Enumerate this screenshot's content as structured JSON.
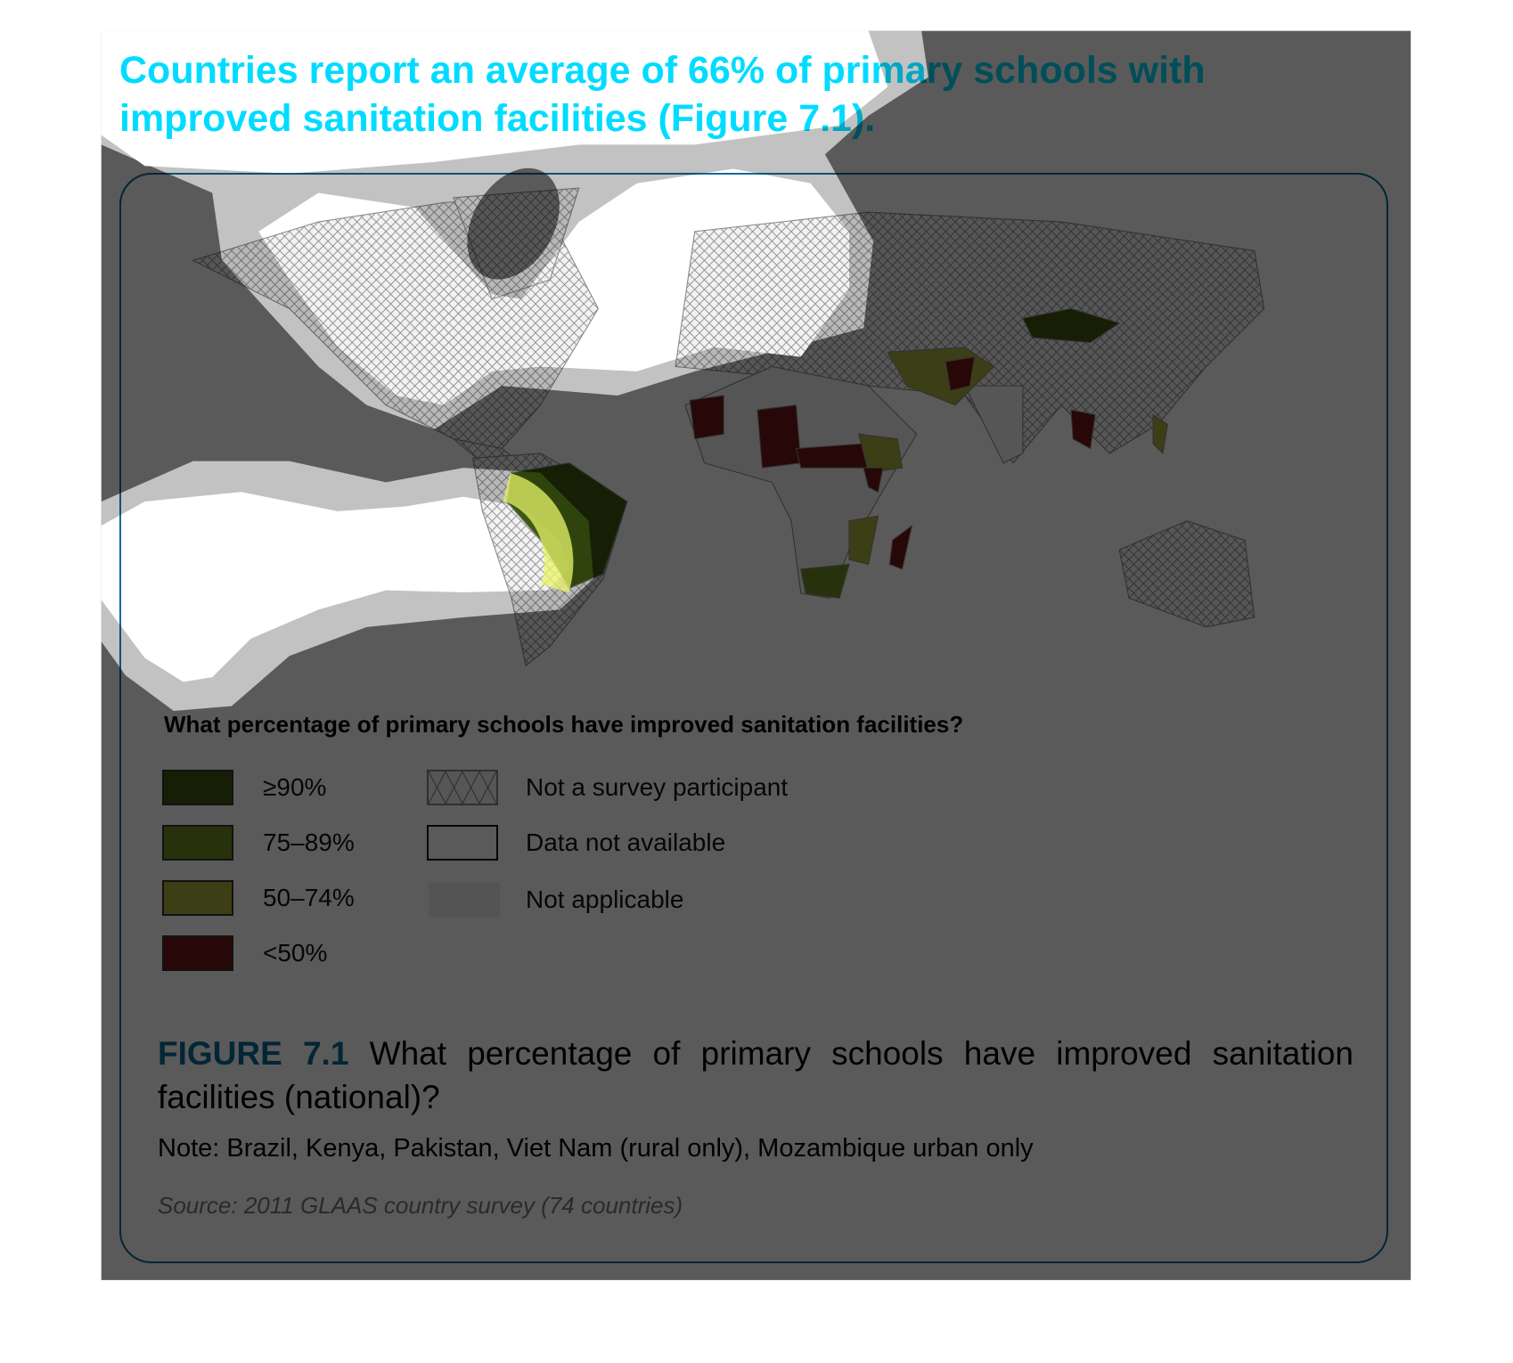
{
  "heading": "Countries report an average of 66% of primary schools with improved sanitation facilities (Figure 7.1).",
  "map": {
    "legend_title": "What percentage of primary schools have improved sanitation facilities?",
    "legend": [
      {
        "label": "≥90%",
        "color": "#3e5a12"
      },
      {
        "label": "75–89%",
        "color": "#6f8f22"
      },
      {
        "label": "50–74%",
        "color": "#a9b13e"
      },
      {
        "label": "<50%",
        "color": "#6e1414"
      },
      {
        "label": "Not a survey participant",
        "pattern": "crosshatch"
      },
      {
        "label": "Data not available",
        "color": "#ffffff"
      },
      {
        "label": "Not applicable",
        "color": "#eeeeee"
      }
    ]
  },
  "caption": {
    "figure_label": "FIGURE 7.1",
    "text": "What percentage of primary schools have improved sanitation facilities (national)?",
    "note": "Note: Brazil, Kenya, Pakistan, Viet Nam (rural only), Mozambique urban only",
    "source": "Source: 2011 GLAAS country survey (74 countries)"
  },
  "colors": {
    "accent": "#00dcff",
    "frame": "#0a6b9a"
  }
}
